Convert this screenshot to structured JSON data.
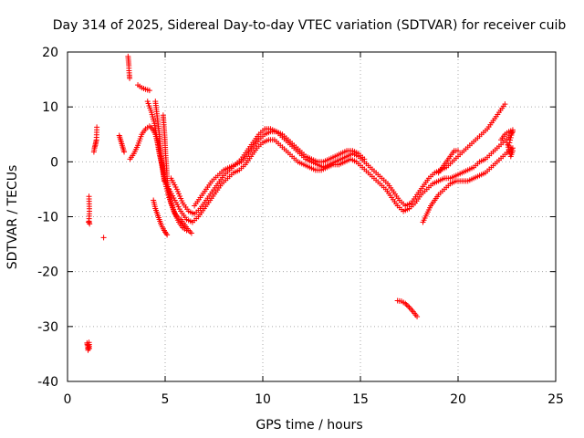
{
  "chart_data": {
    "type": "scatter",
    "title": "Day 314 of 2025, Sidereal Day-to-day VTEC variation (SDTVAR) for receiver cuib",
    "xlabel": "GPS time / hours",
    "ylabel": "SDTVAR / TECUs",
    "xlim": [
      0,
      25
    ],
    "ylim": [
      -40,
      20
    ],
    "xticks": [
      0,
      5,
      10,
      15,
      20,
      25
    ],
    "yticks": [
      -40,
      -30,
      -20,
      -10,
      0,
      10,
      20
    ],
    "xtick_labels": [
      "0",
      "5",
      "10",
      "15",
      "20",
      "25"
    ],
    "ytick_labels": [
      "-40",
      "-30",
      "-20",
      "-10",
      "0",
      "10",
      "20"
    ],
    "grid": true,
    "marker": "+",
    "series_color": "#ff0000",
    "series": [
      {
        "name": "isolated-low",
        "points": [
          [
            1.0,
            -33.0
          ],
          [
            1.02,
            -33.5
          ],
          [
            1.05,
            -34.3
          ],
          [
            1.07,
            -33.8
          ],
          [
            1.1,
            -32.9
          ],
          [
            1.12,
            -34.0
          ]
        ]
      },
      {
        "name": "isolated-a",
        "points": [
          [
            1.1,
            -6.3
          ],
          [
            1.12,
            -9.0
          ],
          [
            1.1,
            -10.8
          ],
          [
            1.13,
            -11.3
          ],
          [
            1.08,
            -11.0
          ]
        ]
      },
      {
        "name": "isolated-b",
        "points": [
          [
            1.35,
            1.8
          ],
          [
            1.38,
            2.5
          ],
          [
            1.42,
            3.0
          ],
          [
            1.45,
            3.5
          ],
          [
            1.48,
            4.0
          ],
          [
            1.5,
            6.3
          ]
        ]
      },
      {
        "name": "isolated-c",
        "points": [
          [
            1.85,
            -13.8
          ]
        ]
      },
      {
        "name": "isolated-d",
        "points": [
          [
            2.65,
            4.8
          ],
          [
            2.7,
            4.2
          ],
          [
            2.75,
            3.6
          ],
          [
            2.8,
            3.0
          ],
          [
            2.85,
            2.4
          ],
          [
            2.9,
            1.8
          ]
        ]
      },
      {
        "name": "isolated-high",
        "points": [
          [
            3.1,
            19.2
          ],
          [
            3.12,
            18.5
          ],
          [
            3.14,
            17.5
          ],
          [
            3.15,
            16.6
          ],
          [
            3.17,
            15.8
          ],
          [
            3.18,
            15.2
          ]
        ]
      },
      {
        "name": "arc-upper",
        "points": [
          [
            3.6,
            14
          ],
          [
            3.8,
            13.5
          ],
          [
            4.0,
            13.2
          ],
          [
            4.2,
            13.0
          ]
        ]
      },
      {
        "name": "cluster-left-rise",
        "points": [
          [
            3.2,
            0.5
          ],
          [
            3.4,
            1.5
          ],
          [
            3.6,
            3.0
          ],
          [
            3.8,
            5.0
          ],
          [
            4.0,
            6.0
          ],
          [
            4.2,
            6.5
          ],
          [
            4.35,
            6.0
          ],
          [
            4.5,
            5.0
          ],
          [
            4.6,
            3.5
          ],
          [
            4.7,
            1.5
          ],
          [
            4.8,
            0
          ],
          [
            4.9,
            -1.5
          ],
          [
            5.0,
            -3.0
          ],
          [
            5.1,
            -4.5
          ],
          [
            5.2,
            -6.0
          ],
          [
            5.3,
            -7.5
          ],
          [
            5.45,
            -9.0
          ],
          [
            5.6,
            -10.0
          ],
          [
            5.8,
            -10.5
          ],
          [
            6.0,
            -11.5
          ],
          [
            6.2,
            -12.5
          ],
          [
            6.35,
            -13.0
          ]
        ]
      },
      {
        "name": "cluster-left-fall",
        "points": [
          [
            4.1,
            11
          ],
          [
            4.3,
            9
          ],
          [
            4.45,
            7
          ],
          [
            4.55,
            5
          ],
          [
            4.65,
            3
          ],
          [
            4.75,
            1
          ],
          [
            4.85,
            -1
          ],
          [
            4.95,
            -3
          ],
          [
            5.05,
            -4.5
          ],
          [
            5.2,
            -6.5
          ],
          [
            5.35,
            -8
          ],
          [
            5.5,
            -9.5
          ],
          [
            5.7,
            -11
          ],
          [
            5.9,
            -12
          ],
          [
            6.1,
            -12.5
          ]
        ]
      },
      {
        "name": "cluster-steep",
        "points": [
          [
            4.5,
            11
          ],
          [
            4.55,
            9.5
          ],
          [
            4.6,
            8
          ],
          [
            4.65,
            6.5
          ],
          [
            4.7,
            5
          ],
          [
            4.72,
            4
          ],
          [
            4.75,
            2.5
          ],
          [
            4.8,
            1
          ],
          [
            4.85,
            -0.5
          ],
          [
            4.9,
            -2
          ],
          [
            4.95,
            -3.5
          ]
        ]
      },
      {
        "name": "cluster-steep-2",
        "points": [
          [
            4.9,
            8.5
          ],
          [
            4.92,
            7.5
          ],
          [
            4.95,
            6
          ],
          [
            4.98,
            4.5
          ],
          [
            5.0,
            3
          ],
          [
            5.02,
            1.5
          ],
          [
            5.05,
            0
          ],
          [
            5.08,
            -1.5
          ],
          [
            5.1,
            -3
          ],
          [
            5.15,
            -4.5
          ],
          [
            5.2,
            -6
          ]
        ]
      },
      {
        "name": "cluster-low-dip",
        "points": [
          [
            4.4,
            -7
          ],
          [
            4.5,
            -8.5
          ],
          [
            4.6,
            -9.5
          ],
          [
            4.7,
            -10.5
          ],
          [
            4.8,
            -11.5
          ],
          [
            4.9,
            -12.2
          ],
          [
            5.0,
            -12.8
          ],
          [
            5.1,
            -13.3
          ]
        ]
      },
      {
        "name": "curve-main-a",
        "points": [
          [
            5.3,
            -3
          ],
          [
            5.6,
            -5
          ],
          [
            5.9,
            -7.5
          ],
          [
            6.2,
            -9
          ],
          [
            6.5,
            -9.5
          ],
          [
            6.8,
            -8.5
          ],
          [
            7.1,
            -7
          ],
          [
            7.4,
            -5.5
          ],
          [
            7.7,
            -4
          ],
          [
            8.0,
            -2.5
          ],
          [
            8.3,
            -1.5
          ],
          [
            8.6,
            -0.5
          ],
          [
            8.9,
            0
          ],
          [
            9.2,
            1
          ],
          [
            9.5,
            2.5
          ],
          [
            9.8,
            4
          ],
          [
            10.1,
            5
          ],
          [
            10.4,
            5.5
          ],
          [
            10.7,
            5.5
          ],
          [
            11.0,
            4.5
          ],
          [
            11.3,
            3.5
          ],
          [
            11.6,
            2.5
          ],
          [
            11.9,
            1.5
          ],
          [
            12.2,
            0.5
          ],
          [
            12.5,
            0
          ],
          [
            12.8,
            -0.5
          ],
          [
            13.1,
            -1
          ],
          [
            13.4,
            -0.5
          ],
          [
            13.7,
            0
          ],
          [
            14.0,
            0.5
          ],
          [
            14.3,
            1
          ],
          [
            14.6,
            1.5
          ],
          [
            14.9,
            1
          ],
          [
            15.2,
            0
          ],
          [
            15.5,
            -1
          ],
          [
            15.8,
            -2
          ],
          [
            16.1,
            -3
          ],
          [
            16.4,
            -4
          ],
          [
            16.7,
            -5.5
          ],
          [
            17.0,
            -7
          ],
          [
            17.3,
            -8
          ],
          [
            17.6,
            -7.5
          ],
          [
            17.9,
            -6
          ],
          [
            18.2,
            -4.5
          ],
          [
            18.5,
            -3
          ],
          [
            18.8,
            -2
          ],
          [
            19.1,
            -1.5
          ],
          [
            19.4,
            -1
          ],
          [
            19.7,
            0
          ],
          [
            20.0,
            1
          ],
          [
            20.3,
            2
          ],
          [
            20.6,
            3
          ],
          [
            20.9,
            4
          ],
          [
            21.2,
            5
          ],
          [
            21.5,
            6
          ],
          [
            21.8,
            7.5
          ],
          [
            22.1,
            9
          ],
          [
            22.4,
            10.5
          ]
        ]
      },
      {
        "name": "curve-main-b",
        "points": [
          [
            5.2,
            -5
          ],
          [
            5.5,
            -7
          ],
          [
            5.8,
            -9
          ],
          [
            6.1,
            -10.5
          ],
          [
            6.4,
            -11
          ],
          [
            6.7,
            -10
          ],
          [
            7.0,
            -8.5
          ],
          [
            7.3,
            -7
          ],
          [
            7.6,
            -5.5
          ],
          [
            7.9,
            -4
          ],
          [
            8.2,
            -3
          ],
          [
            8.5,
            -2
          ],
          [
            8.8,
            -1.5
          ],
          [
            9.1,
            -0.5
          ],
          [
            9.4,
            1
          ],
          [
            9.7,
            2.5
          ],
          [
            10.0,
            3.5
          ],
          [
            10.3,
            4
          ],
          [
            10.6,
            4
          ],
          [
            10.9,
            3
          ],
          [
            11.2,
            2
          ],
          [
            11.5,
            1
          ],
          [
            11.8,
            0
          ],
          [
            12.1,
            -0.5
          ],
          [
            12.4,
            -1
          ],
          [
            12.7,
            -1.5
          ],
          [
            13.0,
            -1.5
          ],
          [
            13.3,
            -1
          ],
          [
            13.6,
            -0.5
          ],
          [
            13.9,
            -0.5
          ],
          [
            14.2,
            0
          ],
          [
            14.5,
            0.5
          ],
          [
            14.8,
            0
          ],
          [
            15.1,
            -1
          ],
          [
            15.4,
            -2
          ],
          [
            15.7,
            -3
          ],
          [
            16.0,
            -4
          ],
          [
            16.3,
            -5
          ],
          [
            16.6,
            -6.5
          ],
          [
            16.9,
            -8
          ],
          [
            17.2,
            -9
          ],
          [
            17.5,
            -8.5
          ],
          [
            17.8,
            -7.5
          ],
          [
            18.1,
            -6
          ],
          [
            18.4,
            -5
          ],
          [
            18.7,
            -4
          ],
          [
            19.0,
            -3.5
          ],
          [
            19.3,
            -3
          ],
          [
            19.6,
            -3
          ],
          [
            19.9,
            -2.5
          ],
          [
            20.2,
            -2
          ],
          [
            20.5,
            -1.5
          ],
          [
            20.8,
            -1
          ],
          [
            21.1,
            0
          ],
          [
            21.4,
            0.5
          ],
          [
            21.7,
            1.5
          ],
          [
            22.0,
            2.5
          ],
          [
            22.3,
            3.5
          ],
          [
            22.6,
            4.5
          ],
          [
            22.8,
            5.5
          ]
        ]
      },
      {
        "name": "curve-main-c",
        "points": [
          [
            6.5,
            -8
          ],
          [
            6.8,
            -6.5
          ],
          [
            7.1,
            -5
          ],
          [
            7.4,
            -3.5
          ],
          [
            7.7,
            -2.5
          ],
          [
            8.0,
            -1.5
          ],
          [
            8.3,
            -1
          ],
          [
            8.6,
            -0.5
          ],
          [
            8.9,
            0.5
          ],
          [
            9.2,
            2
          ],
          [
            9.5,
            3.5
          ],
          [
            9.8,
            5
          ],
          [
            10.1,
            6
          ],
          [
            10.4,
            6
          ],
          [
            10.7,
            5.5
          ],
          [
            11.0,
            5
          ],
          [
            11.3,
            4
          ],
          [
            11.6,
            3
          ],
          [
            11.9,
            2
          ],
          [
            12.2,
            1
          ],
          [
            12.5,
            0.5
          ],
          [
            12.8,
            0
          ],
          [
            13.1,
            0
          ],
          [
            13.4,
            0.5
          ],
          [
            13.7,
            1
          ],
          [
            14.0,
            1.5
          ],
          [
            14.3,
            2
          ],
          [
            14.6,
            2
          ],
          [
            14.9,
            1.5
          ],
          [
            15.2,
            0.5
          ]
        ]
      },
      {
        "name": "curve-lower-right",
        "points": [
          [
            18.2,
            -11
          ],
          [
            18.4,
            -9.5
          ],
          [
            18.6,
            -8
          ],
          [
            18.8,
            -7
          ],
          [
            19.0,
            -6
          ],
          [
            19.3,
            -5
          ],
          [
            19.6,
            -4
          ],
          [
            19.9,
            -3.5
          ],
          [
            20.2,
            -3.5
          ],
          [
            20.5,
            -3.5
          ],
          [
            20.8,
            -3
          ],
          [
            21.1,
            -2.5
          ],
          [
            21.4,
            -2
          ],
          [
            21.7,
            -1
          ],
          [
            22.0,
            0
          ],
          [
            22.3,
            1
          ],
          [
            22.6,
            2
          ],
          [
            22.8,
            2.5
          ]
        ]
      },
      {
        "name": "curve-right-hook",
        "points": [
          [
            19.0,
            -2
          ],
          [
            19.2,
            -1
          ],
          [
            19.4,
            0
          ],
          [
            19.6,
            1
          ],
          [
            19.8,
            2
          ],
          [
            20.0,
            2
          ]
        ]
      },
      {
        "name": "curve-right-end",
        "points": [
          [
            22.2,
            4
          ],
          [
            22.4,
            5
          ],
          [
            22.6,
            5.5
          ],
          [
            22.8,
            5.8
          ],
          [
            22.6,
            3
          ],
          [
            22.8,
            2
          ],
          [
            22.7,
            1
          ],
          [
            22.5,
            3.5
          ]
        ]
      },
      {
        "name": "isolated-late",
        "points": [
          [
            16.9,
            -25.3
          ],
          [
            17.1,
            -25.4
          ],
          [
            17.3,
            -25.8
          ],
          [
            17.5,
            -26.5
          ],
          [
            17.7,
            -27.3
          ],
          [
            17.9,
            -28.2
          ]
        ]
      }
    ]
  }
}
